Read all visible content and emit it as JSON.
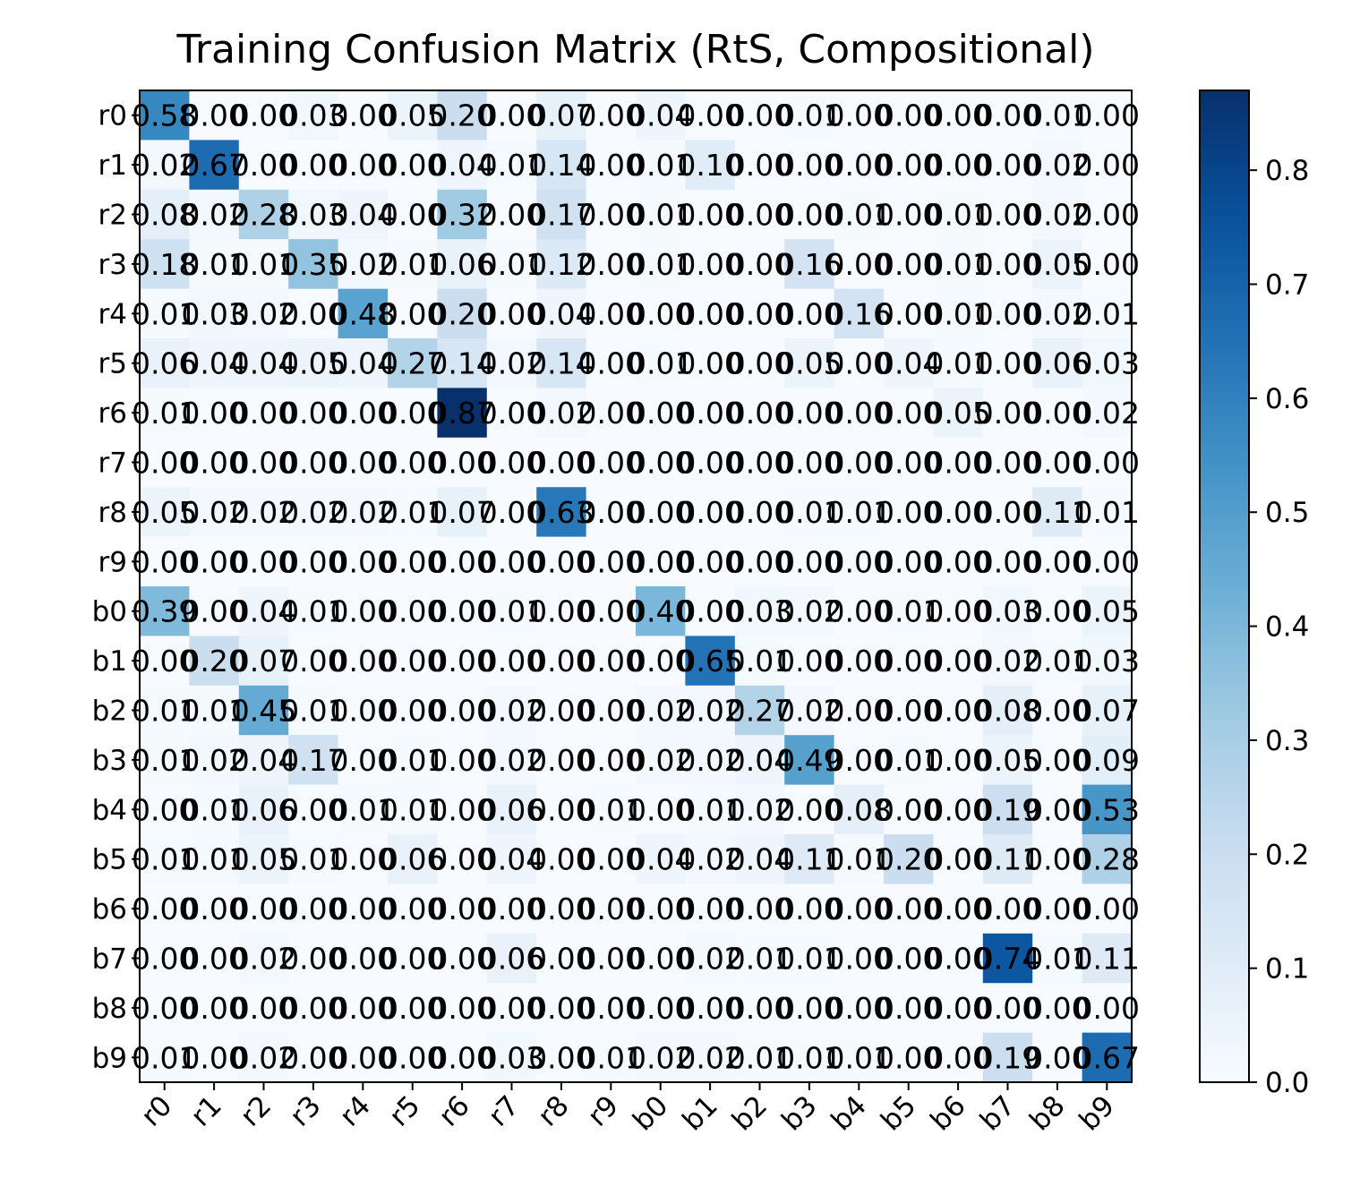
{
  "chart_data": {
    "type": "heatmap",
    "title": "Training Confusion Matrix (RtS, Compositional)",
    "xlabel": "",
    "ylabel": "",
    "rows": [
      "r0",
      "r1",
      "r2",
      "r3",
      "r4",
      "r5",
      "r6",
      "r7",
      "r8",
      "r9",
      "b0",
      "b1",
      "b2",
      "b3",
      "b4",
      "b5",
      "b6",
      "b7",
      "b8",
      "b9"
    ],
    "cols": [
      "r0",
      "r1",
      "r2",
      "r3",
      "r4",
      "r5",
      "r6",
      "r7",
      "r8",
      "r9",
      "b0",
      "b1",
      "b2",
      "b3",
      "b4",
      "b5",
      "b6",
      "b7",
      "b8",
      "b9"
    ],
    "values": [
      [
        0.58,
        0.0,
        0.0,
        0.03,
        0.0,
        0.05,
        0.2,
        0.0,
        0.07,
        0.0,
        0.04,
        0.0,
        0.0,
        0.01,
        0.0,
        0.0,
        0.0,
        0.0,
        0.01,
        0.0
      ],
      [
        0.02,
        0.67,
        0.0,
        0.0,
        0.0,
        0.0,
        0.04,
        0.01,
        0.14,
        0.0,
        0.01,
        0.1,
        0.0,
        0.0,
        0.0,
        0.0,
        0.0,
        0.0,
        0.02,
        0.0
      ],
      [
        0.08,
        0.02,
        0.28,
        0.03,
        0.04,
        0.0,
        0.32,
        0.0,
        0.17,
        0.0,
        0.01,
        0.0,
        0.0,
        0.0,
        0.01,
        0.0,
        0.01,
        0.0,
        0.02,
        0.0
      ],
      [
        0.18,
        0.01,
        0.01,
        0.35,
        0.02,
        0.01,
        0.06,
        0.01,
        0.12,
        0.0,
        0.01,
        0.0,
        0.0,
        0.16,
        0.0,
        0.0,
        0.01,
        0.0,
        0.05,
        0.0
      ],
      [
        0.01,
        0.03,
        0.02,
        0.0,
        0.48,
        0.0,
        0.2,
        0.0,
        0.04,
        0.0,
        0.0,
        0.0,
        0.0,
        0.0,
        0.16,
        0.0,
        0.01,
        0.0,
        0.02,
        0.01
      ],
      [
        0.06,
        0.04,
        0.04,
        0.05,
        0.04,
        0.27,
        0.14,
        0.02,
        0.14,
        0.0,
        0.01,
        0.0,
        0.0,
        0.05,
        0.0,
        0.04,
        0.01,
        0.0,
        0.06,
        0.03
      ],
      [
        0.01,
        0.0,
        0.0,
        0.0,
        0.0,
        0.0,
        0.87,
        0.0,
        0.02,
        0.0,
        0.0,
        0.0,
        0.0,
        0.0,
        0.0,
        0.0,
        0.05,
        0.0,
        0.0,
        0.02
      ],
      [
        0.0,
        0.0,
        0.0,
        0.0,
        0.0,
        0.0,
        0.0,
        0.0,
        0.0,
        0.0,
        0.0,
        0.0,
        0.0,
        0.0,
        0.0,
        0.0,
        0.0,
        0.0,
        0.0,
        0.0
      ],
      [
        0.05,
        0.02,
        0.02,
        0.02,
        0.02,
        0.01,
        0.07,
        0.0,
        0.63,
        0.0,
        0.0,
        0.0,
        0.0,
        0.01,
        0.01,
        0.0,
        0.0,
        0.0,
        0.11,
        0.01
      ],
      [
        0.0,
        0.0,
        0.0,
        0.0,
        0.0,
        0.0,
        0.0,
        0.0,
        0.0,
        0.0,
        0.0,
        0.0,
        0.0,
        0.0,
        0.0,
        0.0,
        0.0,
        0.0,
        0.0,
        0.0
      ],
      [
        0.39,
        0.0,
        0.04,
        0.01,
        0.0,
        0.0,
        0.0,
        0.01,
        0.0,
        0.0,
        0.4,
        0.0,
        0.03,
        0.02,
        0.0,
        0.01,
        0.0,
        0.03,
        0.0,
        0.05
      ],
      [
        0.0,
        0.2,
        0.07,
        0.0,
        0.0,
        0.0,
        0.0,
        0.0,
        0.0,
        0.0,
        0.0,
        0.65,
        0.01,
        0.0,
        0.0,
        0.0,
        0.0,
        0.02,
        0.01,
        0.03
      ],
      [
        0.01,
        0.01,
        0.45,
        0.01,
        0.0,
        0.0,
        0.0,
        0.02,
        0.0,
        0.0,
        0.02,
        0.02,
        0.27,
        0.02,
        0.0,
        0.0,
        0.0,
        0.08,
        0.0,
        0.07
      ],
      [
        0.01,
        0.02,
        0.04,
        0.17,
        0.0,
        0.01,
        0.0,
        0.02,
        0.0,
        0.0,
        0.02,
        0.02,
        0.04,
        0.49,
        0.0,
        0.01,
        0.0,
        0.05,
        0.0,
        0.09
      ],
      [
        0.0,
        0.01,
        0.06,
        0.0,
        0.01,
        0.01,
        0.0,
        0.06,
        0.0,
        0.01,
        0.0,
        0.01,
        0.02,
        0.0,
        0.08,
        0.0,
        0.0,
        0.19,
        0.0,
        0.53
      ],
      [
        0.01,
        0.01,
        0.05,
        0.01,
        0.0,
        0.06,
        0.0,
        0.04,
        0.0,
        0.0,
        0.04,
        0.02,
        0.04,
        0.11,
        0.01,
        0.2,
        0.0,
        0.11,
        0.0,
        0.28
      ],
      [
        0.0,
        0.0,
        0.0,
        0.0,
        0.0,
        0.0,
        0.0,
        0.0,
        0.0,
        0.0,
        0.0,
        0.0,
        0.0,
        0.0,
        0.0,
        0.0,
        0.0,
        0.0,
        0.0,
        0.0
      ],
      [
        0.0,
        0.0,
        0.02,
        0.0,
        0.0,
        0.0,
        0.0,
        0.06,
        0.0,
        0.0,
        0.0,
        0.02,
        0.01,
        0.01,
        0.0,
        0.0,
        0.0,
        0.74,
        0.01,
        0.11
      ],
      [
        0.0,
        0.0,
        0.0,
        0.0,
        0.0,
        0.0,
        0.0,
        0.0,
        0.0,
        0.0,
        0.0,
        0.0,
        0.0,
        0.0,
        0.0,
        0.0,
        0.0,
        0.0,
        0.0,
        0.0
      ],
      [
        0.01,
        0.0,
        0.02,
        0.0,
        0.0,
        0.0,
        0.0,
        0.03,
        0.0,
        0.01,
        0.02,
        0.02,
        0.01,
        0.01,
        0.01,
        0.0,
        0.0,
        0.19,
        0.0,
        0.67
      ]
    ],
    "colormap": "Blues",
    "color_range": [
      0.0,
      0.87
    ],
    "colorbar_ticks": [
      "0.0",
      "0.1",
      "0.2",
      "0.3",
      "0.4",
      "0.5",
      "0.6",
      "0.7",
      "0.8"
    ],
    "colorbar_values": [
      0.0,
      0.1,
      0.2,
      0.3,
      0.4,
      0.5,
      0.6,
      0.7,
      0.8
    ],
    "grid": false
  }
}
